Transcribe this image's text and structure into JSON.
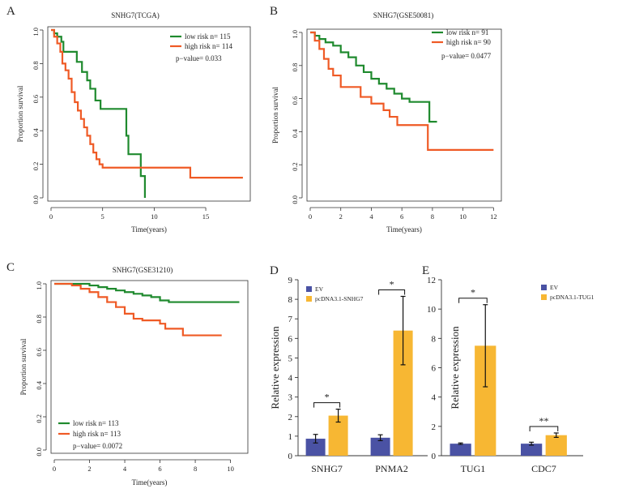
{
  "colors": {
    "green": "#1f8a2e",
    "red": "#ef5a25",
    "blue": "#4a52a4",
    "yellow": "#f7b733",
    "axis": "#333333",
    "errbar": "#111111"
  },
  "chart_data": [
    {
      "panel": "A",
      "type": "line",
      "title": "SNHG7(TCGA)",
      "xlabel": "Time(years)",
      "ylabel": "Proportion survival",
      "xlim": [
        0,
        19
      ],
      "ylim": [
        0,
        1.0
      ],
      "xticks": [
        0,
        5,
        10,
        15
      ],
      "yticks": [
        0.0,
        0.2,
        0.4,
        0.6,
        0.8,
        1.0
      ],
      "legend": {
        "position": "top-right",
        "pvalue": "p−value= 0.033"
      },
      "series": [
        {
          "name": "low risk n= 115",
          "color": "green",
          "points": [
            [
              0,
              1.0
            ],
            [
              0.3,
              0.98
            ],
            [
              0.6,
              0.96
            ],
            [
              1.0,
              0.93
            ],
            [
              1.2,
              0.87
            ],
            [
              2.0,
              0.87
            ],
            [
              2.5,
              0.81
            ],
            [
              3.0,
              0.75
            ],
            [
              3.5,
              0.7
            ],
            [
              3.8,
              0.65
            ],
            [
              4.3,
              0.58
            ],
            [
              4.8,
              0.53
            ],
            [
              7.3,
              0.53
            ],
            [
              7.3,
              0.37
            ],
            [
              7.5,
              0.26
            ],
            [
              8.6,
              0.26
            ],
            [
              8.7,
              0.13
            ],
            [
              9.0,
              0.13
            ],
            [
              9.1,
              0.0
            ]
          ]
        },
        {
          "name": "high risk n= 114",
          "color": "red",
          "points": [
            [
              0,
              1.0
            ],
            [
              0.3,
              0.96
            ],
            [
              0.6,
              0.92
            ],
            [
              0.9,
              0.87
            ],
            [
              1.1,
              0.8
            ],
            [
              1.4,
              0.76
            ],
            [
              1.7,
              0.71
            ],
            [
              2.0,
              0.63
            ],
            [
              2.3,
              0.57
            ],
            [
              2.6,
              0.52
            ],
            [
              2.9,
              0.47
            ],
            [
              3.2,
              0.42
            ],
            [
              3.5,
              0.37
            ],
            [
              3.8,
              0.32
            ],
            [
              4.1,
              0.27
            ],
            [
              4.4,
              0.23
            ],
            [
              4.7,
              0.2
            ],
            [
              5.0,
              0.18
            ],
            [
              13.5,
              0.18
            ],
            [
              13.5,
              0.12
            ],
            [
              18.6,
              0.12
            ]
          ]
        }
      ]
    },
    {
      "panel": "B",
      "type": "line",
      "title": "SNHG7(GSE50081)",
      "xlabel": "Time(years)",
      "ylabel": "Proportion survival",
      "xlim": [
        0,
        12.3
      ],
      "ylim": [
        0,
        1.0
      ],
      "xticks": [
        0,
        2,
        4,
        6,
        8,
        10,
        12
      ],
      "yticks": [
        0.0,
        0.2,
        0.4,
        0.6,
        0.8,
        1.0
      ],
      "legend": {
        "position": "top-right",
        "pvalue": "p−value= 0.0477"
      },
      "series": [
        {
          "name": "low risk n= 91",
          "color": "green",
          "points": [
            [
              0,
              1.0
            ],
            [
              0.3,
              0.98
            ],
            [
              0.6,
              0.96
            ],
            [
              1.0,
              0.94
            ],
            [
              1.5,
              0.92
            ],
            [
              2.0,
              0.88
            ],
            [
              2.5,
              0.85
            ],
            [
              3.0,
              0.8
            ],
            [
              3.5,
              0.76
            ],
            [
              4.0,
              0.72
            ],
            [
              4.5,
              0.69
            ],
            [
              5.0,
              0.66
            ],
            [
              5.5,
              0.63
            ],
            [
              6.0,
              0.6
            ],
            [
              6.5,
              0.58
            ],
            [
              7.0,
              0.58
            ],
            [
              7.6,
              0.58
            ],
            [
              7.8,
              0.46
            ],
            [
              8.3,
              0.46
            ]
          ]
        },
        {
          "name": "high risk n= 90",
          "color": "red",
          "points": [
            [
              0,
              1.0
            ],
            [
              0.3,
              0.95
            ],
            [
              0.6,
              0.9
            ],
            [
              0.9,
              0.84
            ],
            [
              1.2,
              0.78
            ],
            [
              1.5,
              0.74
            ],
            [
              2.0,
              0.67
            ],
            [
              3.0,
              0.67
            ],
            [
              3.3,
              0.61
            ],
            [
              4.0,
              0.57
            ],
            [
              4.8,
              0.53
            ],
            [
              5.2,
              0.49
            ],
            [
              5.7,
              0.44
            ],
            [
              7.7,
              0.44
            ],
            [
              7.7,
              0.29
            ],
            [
              12.0,
              0.29
            ]
          ]
        }
      ]
    },
    {
      "panel": "C",
      "type": "line",
      "title": "SNHG7(GSE31210)",
      "xlabel": "Time(years)",
      "ylabel": "Proportion survival",
      "xlim": [
        0,
        10.8
      ],
      "ylim": [
        0,
        1.0
      ],
      "xticks": [
        0,
        2,
        4,
        6,
        8,
        10
      ],
      "yticks": [
        0.0,
        0.2,
        0.4,
        0.6,
        0.8,
        1.0
      ],
      "legend": {
        "position": "bottom-left",
        "pvalue": "p−value= 0.0072"
      },
      "series": [
        {
          "name": "low risk n= 113",
          "color": "green",
          "points": [
            [
              0,
              1.0
            ],
            [
              1.5,
              1.0
            ],
            [
              2.0,
              0.99
            ],
            [
              2.5,
              0.98
            ],
            [
              3.0,
              0.97
            ],
            [
              3.5,
              0.96
            ],
            [
              4.0,
              0.95
            ],
            [
              4.5,
              0.94
            ],
            [
              5.0,
              0.93
            ],
            [
              5.5,
              0.92
            ],
            [
              6.0,
              0.9
            ],
            [
              6.5,
              0.89
            ],
            [
              10.5,
              0.89
            ]
          ]
        },
        {
          "name": "high risk n= 113",
          "color": "red",
          "points": [
            [
              0,
              1.0
            ],
            [
              1.0,
              0.99
            ],
            [
              1.5,
              0.97
            ],
            [
              2.0,
              0.95
            ],
            [
              2.5,
              0.92
            ],
            [
              3.0,
              0.89
            ],
            [
              3.5,
              0.86
            ],
            [
              4.0,
              0.82
            ],
            [
              4.5,
              0.79
            ],
            [
              5.0,
              0.78
            ],
            [
              5.5,
              0.78
            ],
            [
              6.0,
              0.76
            ],
            [
              6.3,
              0.73
            ],
            [
              7.3,
              0.73
            ],
            [
              7.3,
              0.69
            ],
            [
              9.5,
              0.69
            ]
          ]
        }
      ]
    },
    {
      "panel": "D",
      "type": "bar",
      "title": "",
      "xlabel": "",
      "ylabel": "Relative expression",
      "ylim": [
        0,
        9
      ],
      "yticks": [
        0,
        1,
        2,
        3,
        4,
        5,
        6,
        7,
        8,
        9
      ],
      "categories": [
        "SNHG7",
        "PNMA2"
      ],
      "series": [
        {
          "name": "EV",
          "color": "blue",
          "values": [
            0.87,
            0.92
          ],
          "errors": [
            0.22,
            0.15
          ]
        },
        {
          "name": "pcDNA3.1-SNHG7",
          "color": "yellow",
          "values": [
            2.05,
            6.4
          ],
          "errors": [
            0.33,
            1.75
          ]
        }
      ],
      "significance": [
        "*",
        "*"
      ]
    },
    {
      "panel": "E",
      "type": "bar",
      "title": "",
      "xlabel": "",
      "ylabel": "Relative expression",
      "ylim": [
        0,
        12
      ],
      "yticks": [
        0,
        2,
        4,
        6,
        8,
        10,
        12
      ],
      "categories": [
        "TUG1",
        "CDC7"
      ],
      "series": [
        {
          "name": "EV",
          "color": "blue",
          "values": [
            0.82,
            0.82
          ],
          "errors": [
            0.05,
            0.1
          ]
        },
        {
          "name": "pcDNA3.1-TUG1",
          "color": "yellow",
          "values": [
            7.5,
            1.4
          ],
          "errors": [
            2.8,
            0.15
          ]
        }
      ],
      "significance": [
        "*",
        "**"
      ]
    }
  ]
}
